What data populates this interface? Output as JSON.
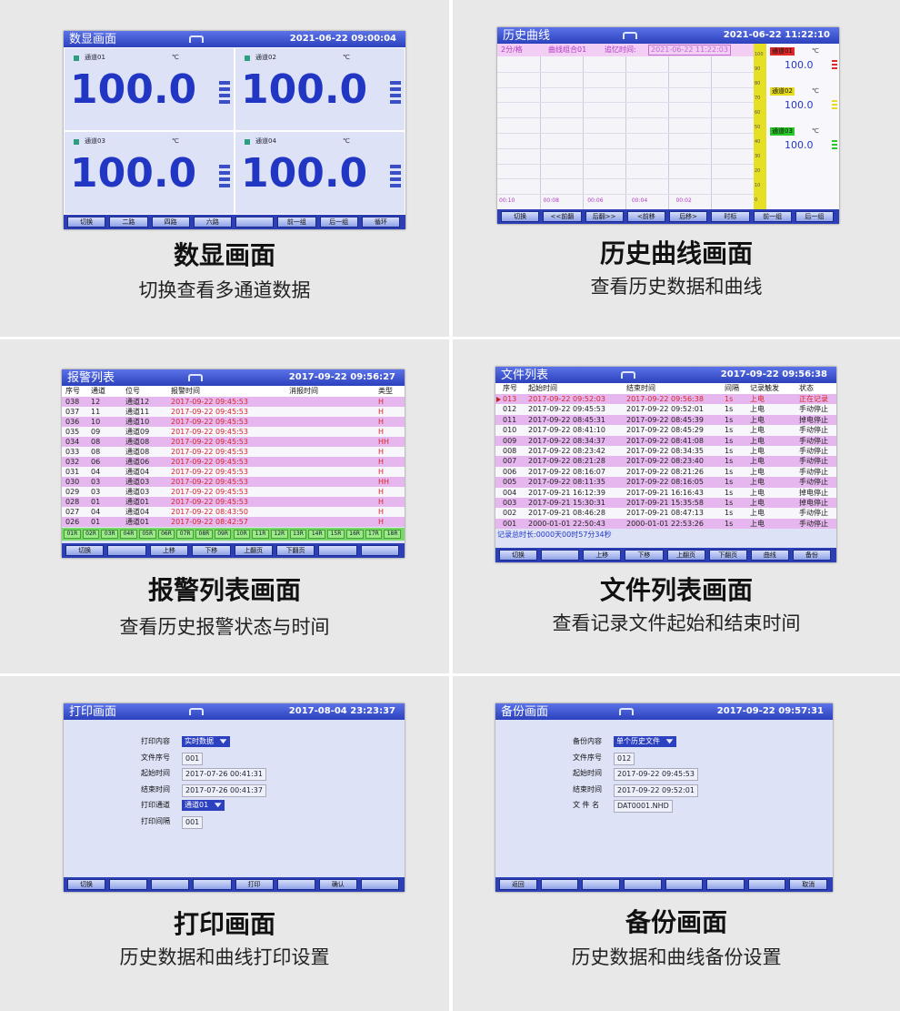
{
  "panels": [
    {
      "caption": {
        "title": "数显画面",
        "subtitle": "切换查看多通道数据"
      },
      "screen": {
        "title": "数显画面",
        "datetime": "2021-06-22 09:00:04",
        "channels": [
          {
            "name": "通道01",
            "unit": "℃",
            "value": "100.0"
          },
          {
            "name": "通道02",
            "unit": "℃",
            "value": "100.0"
          },
          {
            "name": "通道03",
            "unit": "℃",
            "value": "100.0"
          },
          {
            "name": "通道04",
            "unit": "℃",
            "value": "100.0"
          }
        ],
        "buttons": [
          "切换",
          "二路",
          "四路",
          "六路",
          null,
          "前一组",
          "后一组",
          "循环"
        ]
      }
    },
    {
      "caption": {
        "title": "历史曲线画面",
        "subtitle": "查看历史数据和曲线"
      },
      "screen": {
        "title": "历史曲线",
        "datetime": "2021-06-22 11:22:10",
        "curve": {
          "interval": "2分/格",
          "group": "曲线组合01",
          "recall_label": "追忆时间:",
          "recall_time": "2021-06-22 11:22:03",
          "time_labels": [
            "00:10",
            "00:08",
            "00:06",
            "00:04",
            "00:02"
          ],
          "scale": [
            "100",
            "90",
            "80",
            "70",
            "60",
            "50",
            "40",
            "30",
            "20",
            "10",
            "0"
          ],
          "channels": [
            {
              "name": "通道01",
              "unit": "℃",
              "value": "100.0",
              "color": "#e02828"
            },
            {
              "name": "通道02",
              "unit": "℃",
              "value": "100.0",
              "color": "#e8dc20"
            },
            {
              "name": "通道03",
              "unit": "℃",
              "value": "100.0",
              "color": "#28c828"
            }
          ]
        },
        "buttons": [
          "切换",
          "<<前翻",
          "后翻>>",
          "<前移",
          "后移>",
          "时标",
          "前一组",
          "后一组"
        ]
      }
    },
    {
      "caption": {
        "title": "报警列表画面",
        "subtitle": "查看历史报警状态与时间"
      },
      "screen": {
        "title": "报警列表",
        "datetime": "2017-09-22 09:56:27",
        "table": {
          "columns": [
            "序号",
            "通道",
            "位号",
            "报警时间",
            "消报时间",
            "类型"
          ],
          "rows": [
            [
              "038",
              "12",
              "通道12",
              "2017-09-22 09:45:53",
              null,
              "H"
            ],
            [
              "037",
              "11",
              "通道11",
              "2017-09-22 09:45:53",
              null,
              "H"
            ],
            [
              "036",
              "10",
              "通道10",
              "2017-09-22 09:45:53",
              null,
              "H"
            ],
            [
              "035",
              "09",
              "通道09",
              "2017-09-22 09:45:53",
              null,
              "H"
            ],
            [
              "034",
              "08",
              "通道08",
              "2017-09-22 09:45:53",
              null,
              "HH"
            ],
            [
              "033",
              "08",
              "通道08",
              "2017-09-22 09:45:53",
              null,
              "H"
            ],
            [
              "032",
              "06",
              "通道06",
              "2017-09-22 09:45:53",
              null,
              "H"
            ],
            [
              "031",
              "04",
              "通道04",
              "2017-09-22 09:45:53",
              null,
              "H"
            ],
            [
              "030",
              "03",
              "通道03",
              "2017-09-22 09:45:53",
              null,
              "HH"
            ],
            [
              "029",
              "03",
              "通道03",
              "2017-09-22 09:45:53",
              null,
              "H"
            ],
            [
              "028",
              "01",
              "通道01",
              "2017-09-22 09:45:53",
              null,
              "H"
            ],
            [
              "027",
              "04",
              "通道04",
              "2017-09-22 08:43:50",
              null,
              "H"
            ],
            [
              "026",
              "01",
              "通道01",
              "2017-09-22 08:42:57",
              null,
              "H"
            ]
          ]
        },
        "tags": [
          "01R",
          "02R",
          "03R",
          "04R",
          "05R",
          "06R",
          "07R",
          "08R",
          "09R",
          "10R",
          "11R",
          "12R",
          "13R",
          "14R",
          "15R",
          "16R",
          "17R",
          "18R"
        ],
        "buttons": [
          "切换",
          null,
          "上移",
          "下移",
          "上翻页",
          "下翻页",
          null,
          null
        ]
      }
    },
    {
      "caption": {
        "title": "文件列表画面",
        "subtitle": "查看记录文件起始和结束时间"
      },
      "screen": {
        "title": "文件列表",
        "datetime": "2017-09-22 09:56:38",
        "table": {
          "columns": [
            "序号",
            "起始时间",
            "结束时间",
            "间隔",
            "记录触发",
            "状态"
          ],
          "rows": [
            [
              "013",
              "2017-09-22 09:52:03",
              "2017-09-22 09:56:38",
              "1s",
              "上电",
              "正在记录"
            ],
            [
              "012",
              "2017-09-22 09:45:53",
              "2017-09-22 09:52:01",
              "1s",
              "上电",
              "手动停止"
            ],
            [
              "011",
              "2017-09-22 08:45:31",
              "2017-09-22 08:45:39",
              "1s",
              "上电",
              "掉电停止"
            ],
            [
              "010",
              "2017-09-22 08:41:10",
              "2017-09-22 08:45:29",
              "1s",
              "上电",
              "手动停止"
            ],
            [
              "009",
              "2017-09-22 08:34:37",
              "2017-09-22 08:41:08",
              "1s",
              "上电",
              "手动停止"
            ],
            [
              "008",
              "2017-09-22 08:23:42",
              "2017-09-22 08:34:35",
              "1s",
              "上电",
              "手动停止"
            ],
            [
              "007",
              "2017-09-22 08:21:28",
              "2017-09-22 08:23:40",
              "1s",
              "上电",
              "手动停止"
            ],
            [
              "006",
              "2017-09-22 08:16:07",
              "2017-09-22 08:21:26",
              "1s",
              "上电",
              "手动停止"
            ],
            [
              "005",
              "2017-09-22 08:11:35",
              "2017-09-22 08:16:05",
              "1s",
              "上电",
              "手动停止"
            ],
            [
              "004",
              "2017-09-21 16:12:39",
              "2017-09-21 16:16:43",
              "1s",
              "上电",
              "掉电停止"
            ],
            [
              "003",
              "2017-09-21 15:30:31",
              "2017-09-21 15:35:58",
              "1s",
              "上电",
              "掉电停止"
            ],
            [
              "002",
              "2017-09-21 08:46:28",
              "2017-09-21 08:47:13",
              "1s",
              "上电",
              "手动停止"
            ],
            [
              "001",
              "2000-01-01 22:50:43",
              "2000-01-01 22:53:26",
              "1s",
              "上电",
              "手动停止"
            ]
          ]
        },
        "footer": "记录总时长:0000天00时57分34秒",
        "buttons": [
          "切换",
          null,
          "上移",
          "下移",
          "上翻页",
          "下翻页",
          "曲线",
          "备份"
        ]
      }
    },
    {
      "caption": {
        "title": "打印画面",
        "subtitle": "历史数据和曲线打印设置"
      },
      "screen": {
        "title": "打印画面",
        "datetime": "2017-08-04 23:23:37",
        "form": [
          {
            "label": "打印内容",
            "value": "实时数据",
            "dropdown": true
          },
          {
            "label": "文件序号",
            "value": "001"
          },
          {
            "label": "起始时间",
            "value": "2017-07-26 00:41:31"
          },
          {
            "label": "结束时间",
            "value": "2017-07-26 00:41:37"
          },
          {
            "label": "打印通道",
            "value": "通道01",
            "dropdown": true
          },
          {
            "label": "打印间隔",
            "value": "001"
          }
        ],
        "buttons": [
          "切换",
          null,
          null,
          null,
          "打印",
          null,
          "确认",
          null
        ]
      }
    },
    {
      "caption": {
        "title": "备份画面",
        "subtitle": "历史数据和曲线备份设置"
      },
      "screen": {
        "title": "备份画面",
        "datetime": "2017-09-22 09:57:31",
        "form": [
          {
            "label": "备份内容",
            "value": "单个历史文件",
            "dropdown": true
          },
          {
            "label": "文件序号",
            "value": "012"
          },
          {
            "label": "起始时间",
            "value": "2017-09-22 09:45:53"
          },
          {
            "label": "结束时间",
            "value": "2017-09-22 09:52:01"
          },
          {
            "label": "文 件 名",
            "value": "DAT0001.NHD"
          }
        ],
        "buttons": [
          "返回",
          null,
          null,
          null,
          null,
          null,
          null,
          "取消"
        ]
      }
    }
  ]
}
